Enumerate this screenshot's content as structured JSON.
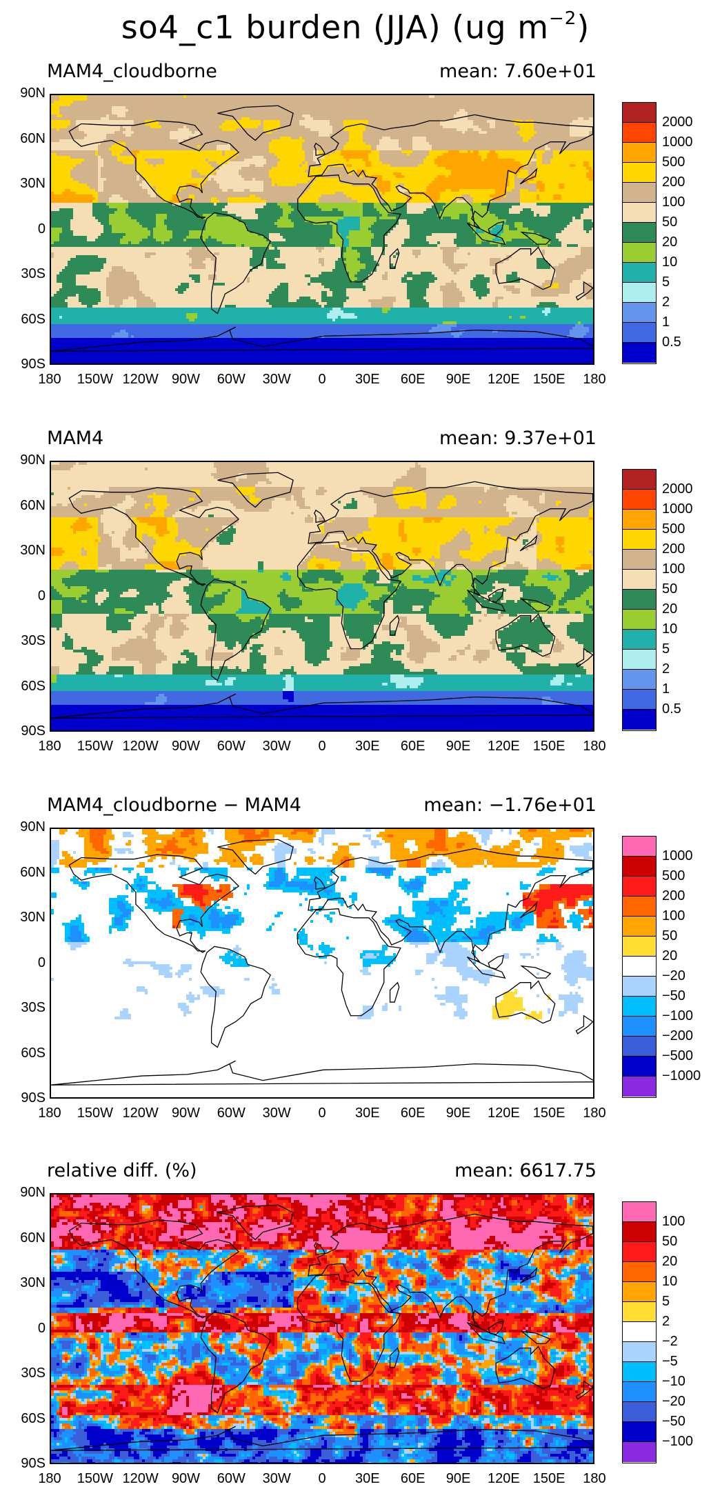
{
  "header": {
    "title": "so4_c1 burden (JJA) (ug m",
    "title_exp": "−2",
    "title_end": ")"
  },
  "axes": {
    "lat_ticks": [
      "90N",
      "60N",
      "30N",
      "0",
      "30S",
      "60S",
      "90S"
    ],
    "lon_ticks": [
      "180",
      "150W",
      "120W",
      "90W",
      "60W",
      "30W",
      "0",
      "30E",
      "60E",
      "90E",
      "120E",
      "150E",
      "180"
    ]
  },
  "panels": [
    {
      "title": "MAM4_cloudborne",
      "mean": "mean: 7.60e+01",
      "colorbar": {
        "labels": [
          "2000",
          "1000",
          "500",
          "200",
          "100",
          "50",
          "20",
          "10",
          "5",
          "2",
          "1",
          "0.5"
        ],
        "colors": [
          "#b22222",
          "#ff4500",
          "#ffa500",
          "#ffd700",
          "#d2b48c",
          "#f5deb3",
          "#2e8b57",
          "#9acd32",
          "#20b2aa",
          "#afeeee",
          "#6495ed",
          "#4169e1",
          "#0000cd"
        ]
      }
    },
    {
      "title": "MAM4",
      "mean": "mean: 9.37e+01",
      "colorbar": {
        "labels": [
          "2000",
          "1000",
          "500",
          "200",
          "100",
          "50",
          "20",
          "10",
          "5",
          "2",
          "1",
          "0.5"
        ],
        "colors": [
          "#b22222",
          "#ff4500",
          "#ffa500",
          "#ffd700",
          "#d2b48c",
          "#f5deb3",
          "#2e8b57",
          "#9acd32",
          "#20b2aa",
          "#afeeee",
          "#6495ed",
          "#4169e1",
          "#0000cd"
        ]
      }
    },
    {
      "title": "MAM4_cloudborne − MAM4",
      "mean": "mean: −1.76e+01",
      "colorbar": {
        "labels": [
          "1000",
          "500",
          "200",
          "100",
          "50",
          "20",
          "−20",
          "−50",
          "−100",
          "−200",
          "−500",
          "−1000"
        ],
        "colors": [
          "#ff69b4",
          "#cc0000",
          "#ff1a1a",
          "#ff6600",
          "#ffa500",
          "#ffdd33",
          "#ffffff",
          "#aad4ff",
          "#00bfff",
          "#1e90ff",
          "#3a5fd9",
          "#0000cd",
          "#8a2be2"
        ]
      }
    },
    {
      "title": "relative diff. (%)",
      "mean": "mean: 6617.75",
      "colorbar": {
        "labels": [
          "100",
          "50",
          "20",
          "10",
          "5",
          "2",
          "−2",
          "−5",
          "−10",
          "−20",
          "−50",
          "−100"
        ],
        "colors": [
          "#ff69b4",
          "#cc0000",
          "#ff1a1a",
          "#ff6600",
          "#ffa500",
          "#ffdd33",
          "#ffffff",
          "#aad4ff",
          "#00bfff",
          "#1e90ff",
          "#3a5fd9",
          "#0000cd",
          "#8a2be2"
        ]
      }
    }
  ]
}
